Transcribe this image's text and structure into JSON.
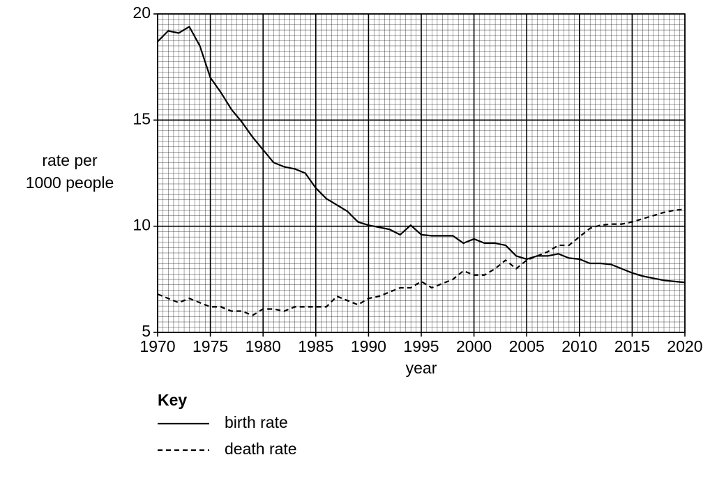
{
  "chart_data": {
    "type": "line",
    "ylabel": [
      "rate per",
      "1000 people"
    ],
    "xlabel": "year",
    "legend_title": "Key",
    "grid": true,
    "x": [
      1970,
      1971,
      1972,
      1973,
      1974,
      1975,
      1976,
      1977,
      1978,
      1979,
      1980,
      1981,
      1982,
      1983,
      1984,
      1985,
      1986,
      1987,
      1988,
      1989,
      1990,
      1991,
      1992,
      1993,
      1994,
      1995,
      1996,
      1997,
      1998,
      1999,
      2000,
      2001,
      2002,
      2003,
      2004,
      2005,
      2006,
      2007,
      2008,
      2009,
      2010,
      2011,
      2012,
      2013,
      2014,
      2015,
      2016,
      2017,
      2018,
      2019,
      2020
    ],
    "xlim": [
      1970,
      2020
    ],
    "xticks": [
      1970,
      1975,
      1980,
      1985,
      1990,
      1995,
      2000,
      2005,
      2010,
      2015,
      2020
    ],
    "ylim": [
      5,
      20
    ],
    "yticks": [
      5,
      10,
      15,
      20
    ],
    "series": [
      {
        "name": "birth rate",
        "color": "#000000",
        "line_style": "solid",
        "values": [
          18.7,
          19.2,
          19.1,
          19.4,
          18.5,
          17.0,
          16.3,
          15.5,
          14.9,
          14.2,
          13.6,
          13.0,
          12.8,
          12.7,
          12.5,
          11.8,
          11.3,
          11.0,
          10.7,
          10.2,
          10.05,
          9.95,
          9.85,
          9.6,
          10.05,
          9.6,
          9.55,
          9.55,
          9.55,
          9.2,
          9.4,
          9.2,
          9.2,
          9.1,
          8.6,
          8.45,
          8.6,
          8.6,
          8.7,
          8.5,
          8.45,
          8.25,
          8.25,
          8.2,
          8.0,
          7.8,
          7.65,
          7.55,
          7.45,
          7.4,
          7.35
        ]
      },
      {
        "name": "death rate",
        "color": "#000000",
        "line_style": "dashed",
        "values": [
          6.8,
          6.6,
          6.4,
          6.6,
          6.4,
          6.2,
          6.2,
          6.0,
          6.0,
          5.8,
          6.1,
          6.1,
          6.0,
          6.2,
          6.2,
          6.2,
          6.2,
          6.7,
          6.5,
          6.3,
          6.6,
          6.7,
          6.9,
          7.1,
          7.1,
          7.4,
          7.1,
          7.3,
          7.5,
          7.9,
          7.7,
          7.7,
          8.0,
          8.4,
          8.0,
          8.4,
          8.6,
          8.8,
          9.1,
          9.1,
          9.5,
          9.9,
          10.05,
          10.1,
          10.1,
          10.2,
          10.35,
          10.5,
          10.65,
          10.75,
          10.8
        ]
      }
    ]
  }
}
